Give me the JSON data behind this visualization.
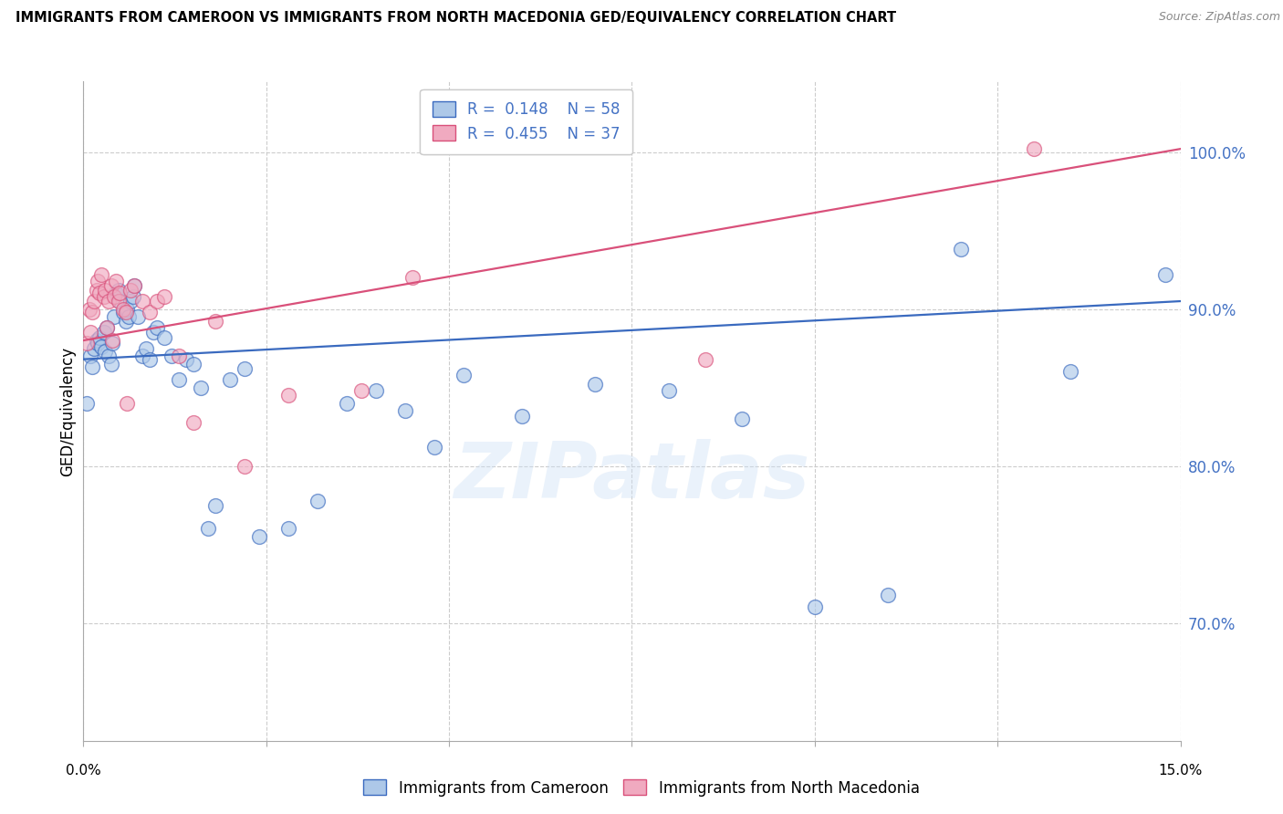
{
  "title": "IMMIGRANTS FROM CAMEROON VS IMMIGRANTS FROM NORTH MACEDONIA GED/EQUIVALENCY CORRELATION CHART",
  "source": "Source: ZipAtlas.com",
  "ylabel": "GED/Equivalency",
  "ytick_labels": [
    "100.0%",
    "90.0%",
    "80.0%",
    "70.0%"
  ],
  "ytick_values": [
    1.0,
    0.9,
    0.8,
    0.7
  ],
  "xlim": [
    0.0,
    0.15
  ],
  "ylim": [
    0.625,
    1.045
  ],
  "cameroon_R": "0.148",
  "cameroon_N": "58",
  "macedonia_R": "0.455",
  "macedonia_N": "37",
  "cameroon_color": "#adc8e8",
  "cameroon_edge_color": "#3a6abf",
  "cameroon_line_color": "#3a6abf",
  "macedonia_color": "#f0aac0",
  "macedonia_edge_color": "#d9507a",
  "macedonia_line_color": "#d9507a",
  "legend_label_1": "Immigrants from Cameroon",
  "legend_label_2": "Immigrants from North Macedonia",
  "watermark": "ZIPatlas",
  "cameroon_x": [
    0.0005,
    0.001,
    0.0012,
    0.0015,
    0.0018,
    0.002,
    0.0022,
    0.0025,
    0.0028,
    0.003,
    0.0032,
    0.0035,
    0.0038,
    0.004,
    0.0042,
    0.0045,
    0.0048,
    0.005,
    0.0055,
    0.0058,
    0.006,
    0.0062,
    0.0065,
    0.0068,
    0.007,
    0.0075,
    0.008,
    0.0085,
    0.009,
    0.0095,
    0.01,
    0.011,
    0.012,
    0.013,
    0.014,
    0.015,
    0.016,
    0.017,
    0.018,
    0.02,
    0.022,
    0.024,
    0.028,
    0.032,
    0.036,
    0.04,
    0.044,
    0.048,
    0.052,
    0.06,
    0.07,
    0.08,
    0.09,
    0.1,
    0.11,
    0.12,
    0.135,
    0.148
  ],
  "cameroon_y": [
    0.84,
    0.87,
    0.863,
    0.875,
    0.88,
    0.878,
    0.882,
    0.876,
    0.885,
    0.873,
    0.888,
    0.87,
    0.865,
    0.878,
    0.895,
    0.91,
    0.912,
    0.905,
    0.898,
    0.892,
    0.9,
    0.895,
    0.905,
    0.908,
    0.915,
    0.895,
    0.87,
    0.875,
    0.868,
    0.885,
    0.888,
    0.882,
    0.87,
    0.855,
    0.868,
    0.865,
    0.85,
    0.76,
    0.775,
    0.855,
    0.862,
    0.755,
    0.76,
    0.778,
    0.84,
    0.848,
    0.835,
    0.812,
    0.858,
    0.832,
    0.852,
    0.848,
    0.83,
    0.71,
    0.718,
    0.938,
    0.86,
    0.922
  ],
  "macedonia_x": [
    0.0005,
    0.0008,
    0.001,
    0.0012,
    0.0015,
    0.0018,
    0.002,
    0.0022,
    0.0025,
    0.0028,
    0.003,
    0.0032,
    0.0035,
    0.0038,
    0.004,
    0.0042,
    0.0045,
    0.0048,
    0.005,
    0.0055,
    0.0058,
    0.006,
    0.0065,
    0.007,
    0.008,
    0.009,
    0.01,
    0.011,
    0.013,
    0.015,
    0.018,
    0.022,
    0.028,
    0.038,
    0.045,
    0.085,
    0.13
  ],
  "macedonia_y": [
    0.878,
    0.9,
    0.885,
    0.898,
    0.905,
    0.912,
    0.918,
    0.91,
    0.922,
    0.908,
    0.912,
    0.888,
    0.905,
    0.915,
    0.88,
    0.908,
    0.918,
    0.905,
    0.91,
    0.9,
    0.898,
    0.84,
    0.912,
    0.915,
    0.905,
    0.898,
    0.905,
    0.908,
    0.87,
    0.828,
    0.892,
    0.8,
    0.845,
    0.848,
    0.92,
    0.868,
    1.002
  ],
  "cam_line_x0": 0.0,
  "cam_line_x1": 0.15,
  "cam_line_y0": 0.868,
  "cam_line_y1": 0.905,
  "mac_line_x0": 0.0,
  "mac_line_x1": 0.15,
  "mac_line_y0": 0.88,
  "mac_line_y1": 1.002
}
